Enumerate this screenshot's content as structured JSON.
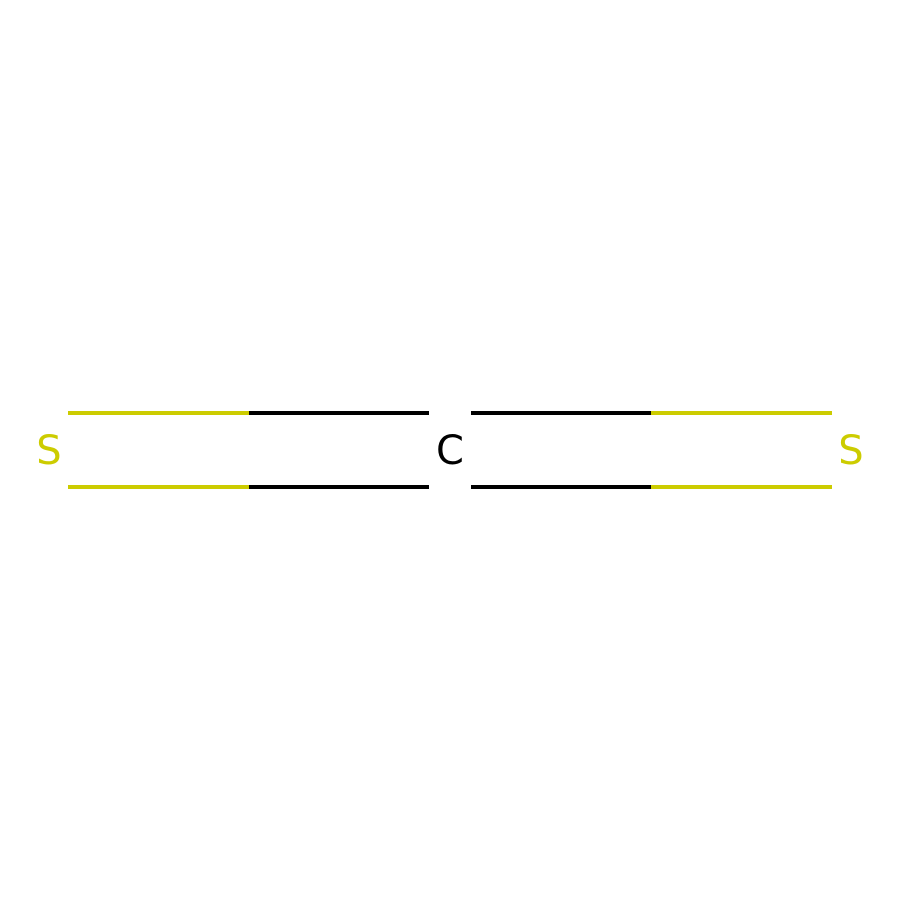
{
  "molecule": {
    "atoms": [
      {
        "id": "s1",
        "symbol": "S",
        "element": "sulfur"
      },
      {
        "id": "c1",
        "symbol": "C",
        "element": "carbon"
      },
      {
        "id": "s2",
        "symbol": "S",
        "element": "sulfur"
      }
    ],
    "bonds": [
      {
        "from": "s1",
        "to": "c1",
        "order": 2
      },
      {
        "from": "c1",
        "to": "s2",
        "order": 2
      }
    ],
    "colors": {
      "sulfur": "#CCCC00",
      "carbon": "#000000",
      "background": "#FFFFFF"
    }
  }
}
